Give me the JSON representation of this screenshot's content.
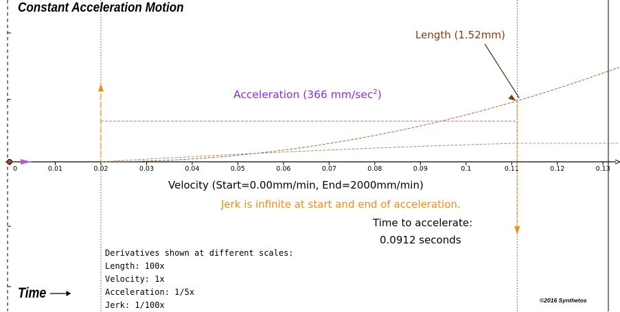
{
  "title": "Constant Acceleration Motion",
  "time_label": "Time",
  "copyright": "©2016 Synthetos",
  "annotations": {
    "length": "Length (1.52mm)",
    "acceleration_base": "Acceleration (366 mm/sec",
    "acceleration_exp": "2",
    "acceleration_close": ")",
    "velocity": "Velocity (Start=0.00mm/min, End=2000mm/min)",
    "jerk": "Jerk is infinite at start and end of acceleration.",
    "time_to_accelerate_label": "Time to accelerate:",
    "time_to_accelerate_value": "0.0912 seconds"
  },
  "legend": {
    "heading": "Derivatives shown at different scales:",
    "items": [
      "Length: 100x",
      "Velocity: 1x",
      "Acceleration: 1/5x",
      "Jerk: 1/100x"
    ]
  },
  "colors": {
    "length": "#a0522d",
    "velocity": "#8b7355",
    "acceleration": "#b05cd6",
    "jerk": "#f28c1a",
    "axis": "#000000"
  },
  "chart_data": {
    "type": "line",
    "x_ticks": [
      "0",
      "0.01",
      "0.02",
      "0.03",
      "0.04",
      "0.05",
      "0.06",
      "0.07",
      "0.08",
      "0.09",
      "0.1",
      "0.11",
      "0.12",
      "0.13"
    ],
    "xlim": [
      0,
      0.1335
    ],
    "accel_start": 0.02,
    "accel_end": 0.1112,
    "series": [
      {
        "name": "Length",
        "kind": "parabola",
        "x": [
          0.02,
          0.1335
        ],
        "y": [
          0,
          0.65
        ]
      },
      {
        "name": "Velocity",
        "kind": "ramp",
        "x": [
          0.02,
          0.1112,
          0.1335
        ],
        "y": [
          0,
          0.128,
          0.128
        ]
      },
      {
        "name": "Acceleration",
        "kind": "step",
        "x": [
          0.02,
          0.1112
        ],
        "y": [
          0.28,
          0.28
        ]
      },
      {
        "name": "Jerk",
        "kind": "impulse",
        "x": [
          0.02,
          0.1112
        ],
        "y": [
          0.54,
          -0.5
        ]
      }
    ]
  }
}
